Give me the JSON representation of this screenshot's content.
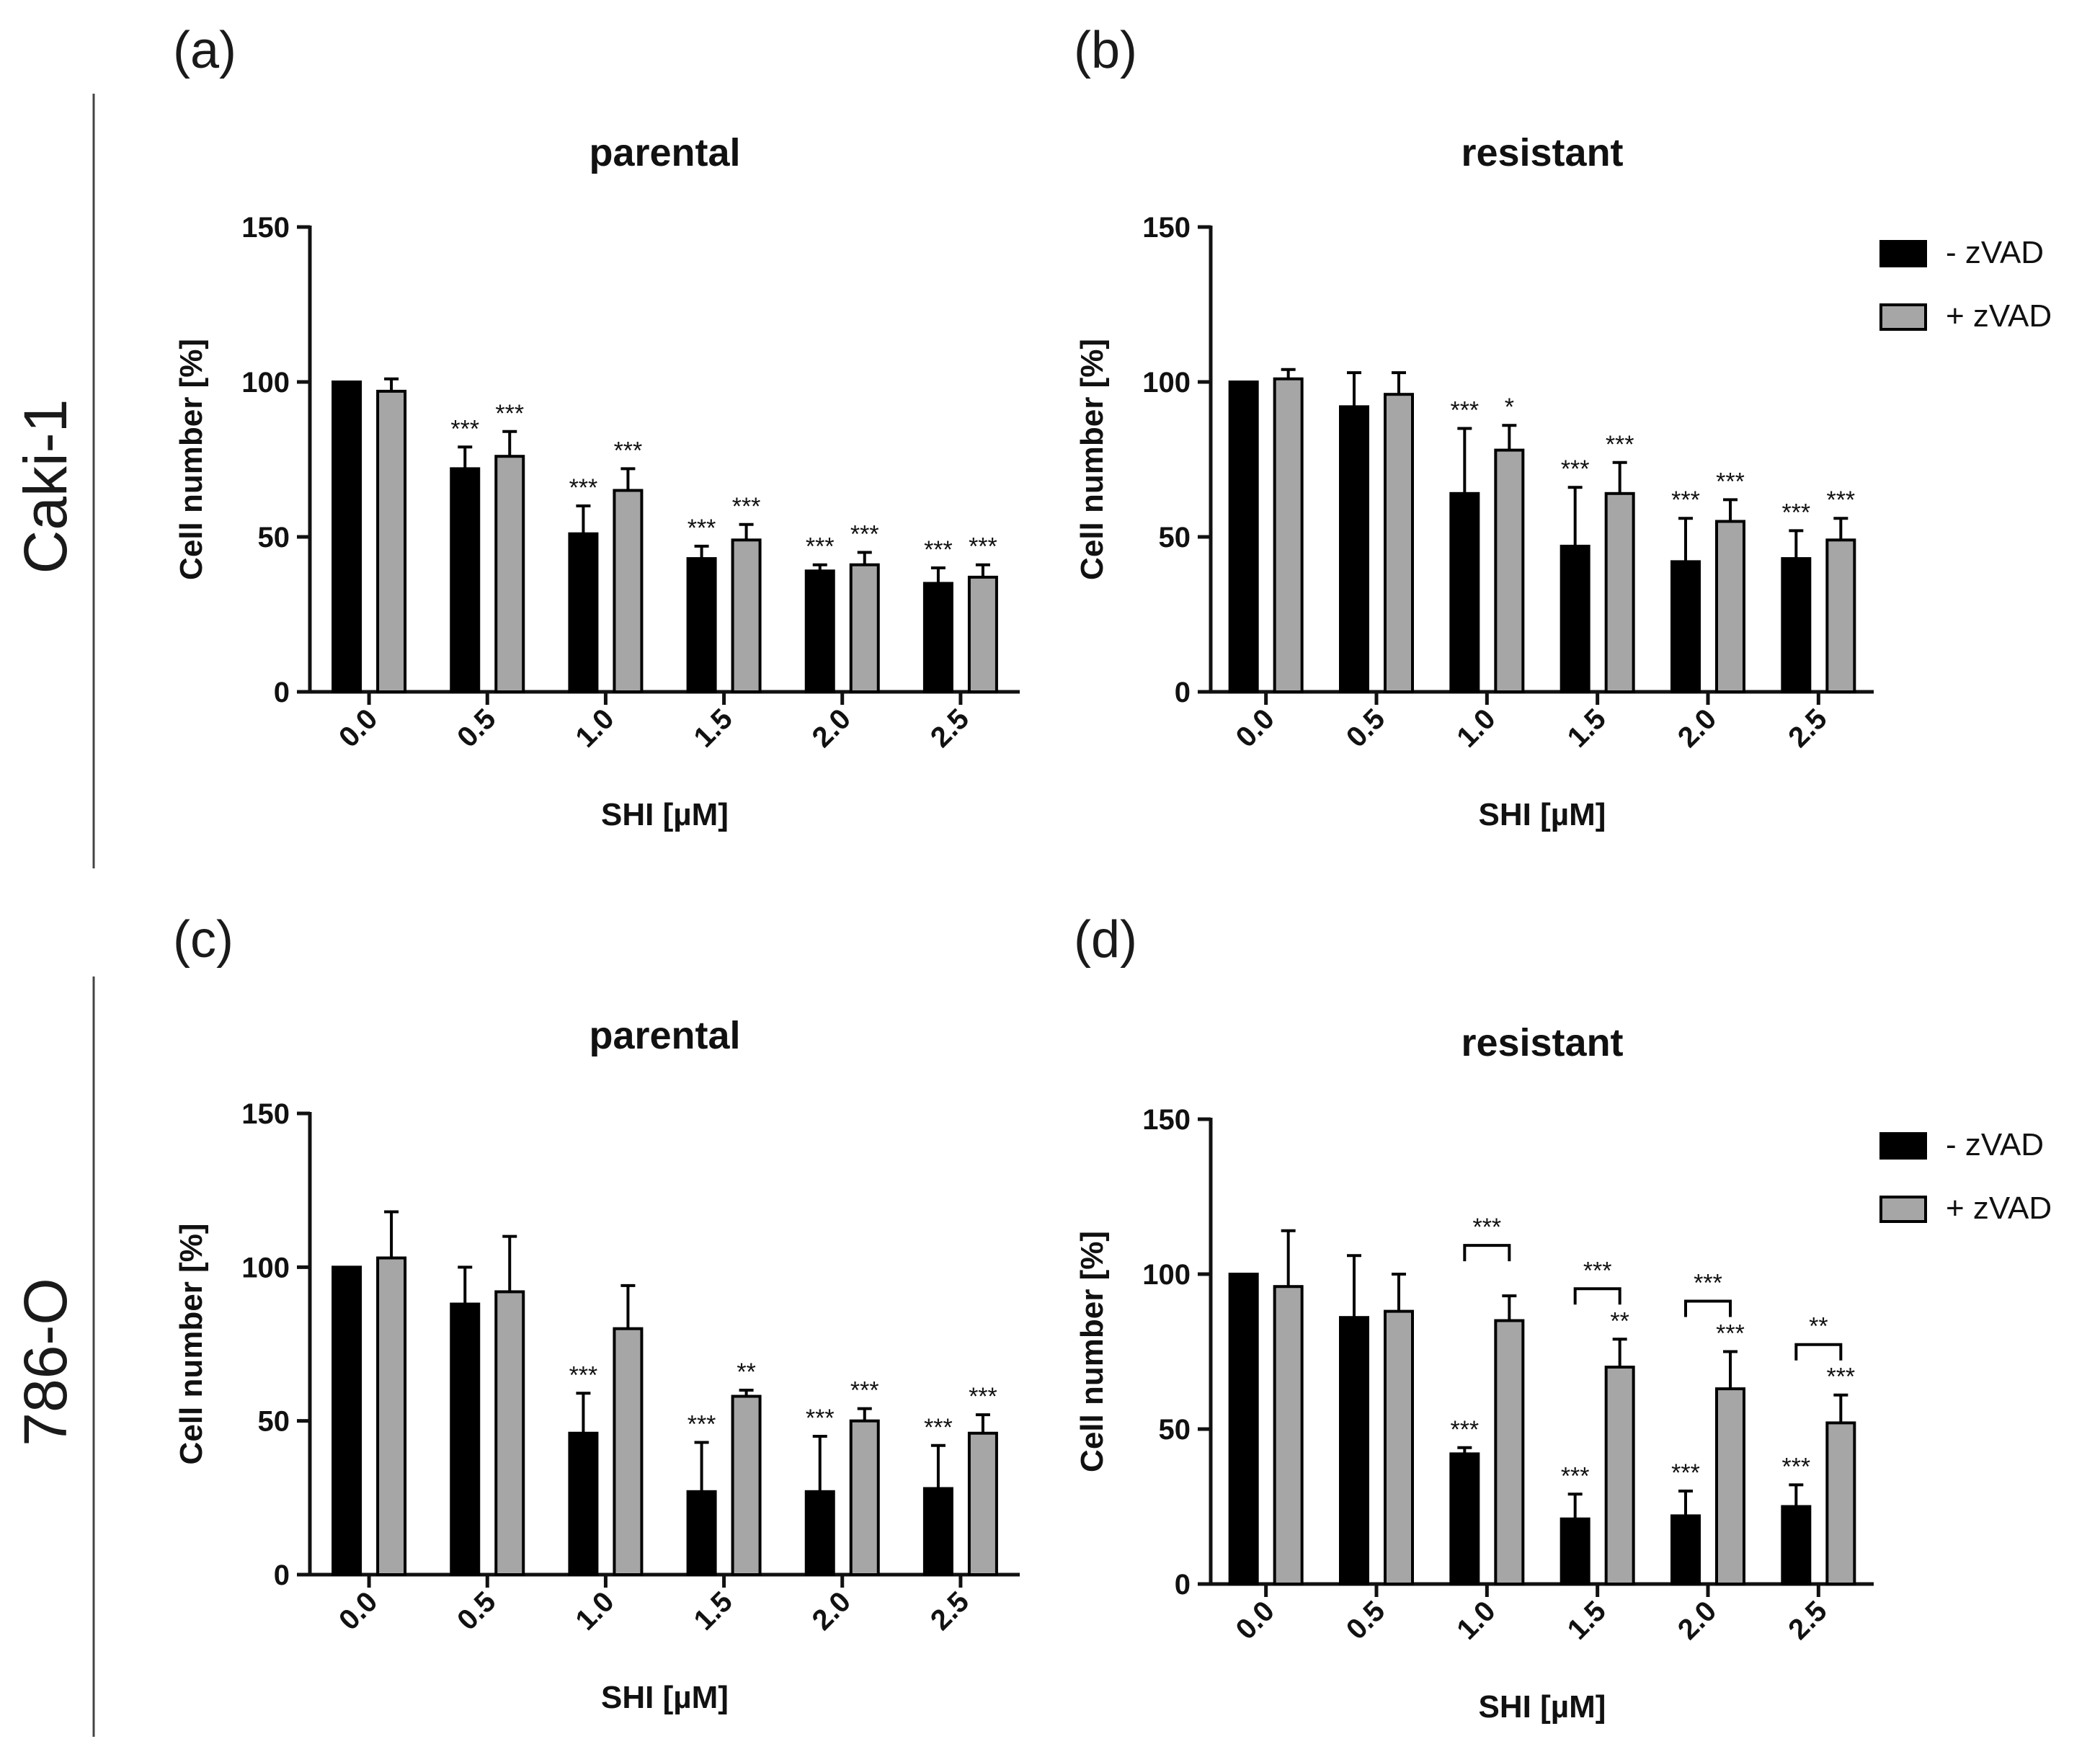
{
  "panel_letters": [
    "(a)",
    "(b)",
    "(c)",
    "(d)"
  ],
  "row_labels": [
    "Caki-1",
    "786-O"
  ],
  "colors": {
    "minus": "#000000",
    "plus": "#a6a6a6",
    "axis": "#111111"
  },
  "chart_data": [
    {
      "type": "bar",
      "title": "parental",
      "xlabel": "SHI [µM]",
      "ylabel": "Cell number [%]",
      "ylim": [
        0,
        150
      ],
      "yticks": [
        "0",
        "50",
        "100",
        "150"
      ],
      "categories": [
        "0.0",
        "0.5",
        "1.0",
        "1.5",
        "2.0",
        "2.5"
      ],
      "legend": null,
      "series": [
        {
          "name": "- zVAD",
          "values": [
            100,
            72,
            51,
            43,
            39,
            35
          ],
          "errors": [
            0,
            7,
            9,
            4,
            2,
            5
          ],
          "sig": [
            "",
            "***",
            "***",
            "***",
            "***",
            "***"
          ]
        },
        {
          "name": "+ zVAD",
          "values": [
            97,
            76,
            65,
            49,
            41,
            37
          ],
          "errors": [
            4,
            8,
            7,
            5,
            4,
            4
          ],
          "sig": [
            "",
            "***",
            "***",
            "***",
            "***",
            "***"
          ]
        }
      ],
      "brackets": []
    },
    {
      "type": "bar",
      "title": "resistant",
      "xlabel": "SHI [µM]",
      "ylabel": "Cell number [%]",
      "ylim": [
        0,
        150
      ],
      "yticks": [
        "0",
        "50",
        "100",
        "150"
      ],
      "categories": [
        "0.0",
        "0.5",
        "1.0",
        "1.5",
        "2.0",
        "2.5"
      ],
      "legend": [
        "- zVAD",
        "+ zVAD"
      ],
      "series": [
        {
          "name": "- zVAD",
          "values": [
            100,
            92,
            64,
            47,
            42,
            43
          ],
          "errors": [
            0,
            11,
            21,
            19,
            14,
            9
          ],
          "sig": [
            "",
            "",
            "***",
            "***",
            "***",
            "***"
          ]
        },
        {
          "name": "+ zVAD",
          "values": [
            101,
            96,
            78,
            64,
            55,
            49
          ],
          "errors": [
            3,
            7,
            8,
            10,
            7,
            7
          ],
          "sig": [
            "",
            "",
            "*",
            "***",
            "***",
            "***"
          ]
        }
      ],
      "brackets": []
    },
    {
      "type": "bar",
      "title": "parental",
      "xlabel": "SHI [µM]",
      "ylabel": "Cell number [%]",
      "ylim": [
        0,
        150
      ],
      "yticks": [
        "0",
        "50",
        "100",
        "150"
      ],
      "categories": [
        "0.0",
        "0.5",
        "1.0",
        "1.5",
        "2.0",
        "2.5"
      ],
      "legend": null,
      "series": [
        {
          "name": "- zVAD",
          "values": [
            100,
            88,
            46,
            27,
            27,
            28
          ],
          "errors": [
            0,
            12,
            13,
            16,
            18,
            14
          ],
          "sig": [
            "",
            "",
            "***",
            "***",
            "***",
            "***"
          ]
        },
        {
          "name": "+ zVAD",
          "values": [
            103,
            92,
            80,
            58,
            50,
            46
          ],
          "errors": [
            15,
            18,
            14,
            2,
            4,
            6
          ],
          "sig": [
            "",
            "",
            "",
            "**",
            "***",
            "***"
          ]
        }
      ],
      "brackets": []
    },
    {
      "type": "bar",
      "title": "resistant",
      "xlabel": "SHI [µM]",
      "ylabel": "Cell number [%]",
      "ylim": [
        0,
        150
      ],
      "yticks": [
        "0",
        "50",
        "100",
        "150"
      ],
      "categories": [
        "0.0",
        "0.5",
        "1.0",
        "1.5",
        "2.0",
        "2.5"
      ],
      "legend": [
        "- zVAD",
        "+ zVAD"
      ],
      "series": [
        {
          "name": "- zVAD",
          "values": [
            100,
            86,
            42,
            21,
            22,
            25
          ],
          "errors": [
            0,
            20,
            2,
            8,
            8,
            7
          ],
          "sig": [
            "",
            "",
            "***",
            "***",
            "***",
            "***"
          ]
        },
        {
          "name": "+ zVAD",
          "values": [
            96,
            88,
            85,
            70,
            63,
            52
          ],
          "errors": [
            18,
            12,
            8,
            9,
            12,
            9
          ],
          "sig": [
            "",
            "",
            "",
            "**",
            "***",
            "***"
          ]
        }
      ],
      "brackets": [
        {
          "category": "1.0",
          "label": "***"
        },
        {
          "category": "1.5",
          "label": "***"
        },
        {
          "category": "2.0",
          "label": "***"
        },
        {
          "category": "2.5",
          "label": "**"
        }
      ]
    }
  ]
}
